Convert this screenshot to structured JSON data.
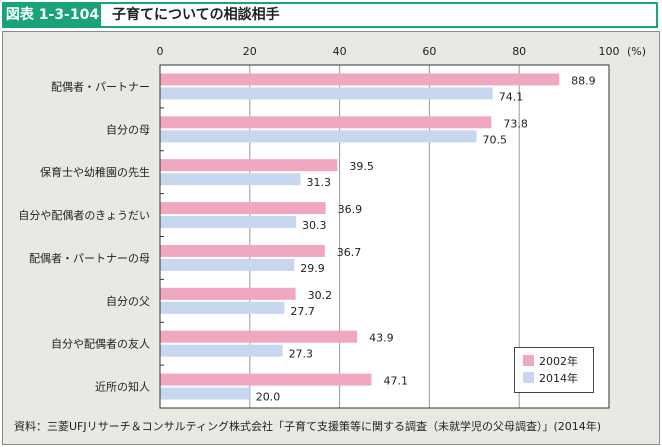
{
  "header": {
    "label": "図表 1-3-104",
    "title": "子育てについての相談相手"
  },
  "colors": {
    "accent": "#1aa37a",
    "series2002": "#f0a8c0",
    "series2014": "#c7d7ee"
  },
  "chart_data": {
    "type": "bar",
    "orientation": "horizontal",
    "title": "子育てについての相談相手",
    "xlabel": "(%)",
    "ylabel": "",
    "xlim": [
      0,
      100
    ],
    "xticks": [
      0,
      20,
      40,
      60,
      80,
      100
    ],
    "xtick_labels": [
      "0",
      "20",
      "40",
      "60",
      "80",
      "100"
    ],
    "unit_label": "(%)",
    "grid": true,
    "legend_position": "bottom-right",
    "categories": [
      "配偶者・パートナー",
      "自分の母",
      "保育士や幼稚園の先生",
      "自分や配偶者のきょうだい",
      "配偶者・パートナーの母",
      "自分の父",
      "自分や配偶者の友人",
      "近所の知人"
    ],
    "series": [
      {
        "name": "2002年",
        "values": [
          88.9,
          73.8,
          39.5,
          36.9,
          36.7,
          30.2,
          43.9,
          47.1
        ]
      },
      {
        "name": "2014年",
        "values": [
          74.1,
          70.5,
          31.3,
          30.3,
          29.9,
          27.7,
          27.3,
          20.0
        ]
      }
    ]
  },
  "source": "資料：三菱UFJリサーチ＆コンサルティング株式会社「子育て支援策等に関する調査（未就学児の父母調査）」(2014年)"
}
